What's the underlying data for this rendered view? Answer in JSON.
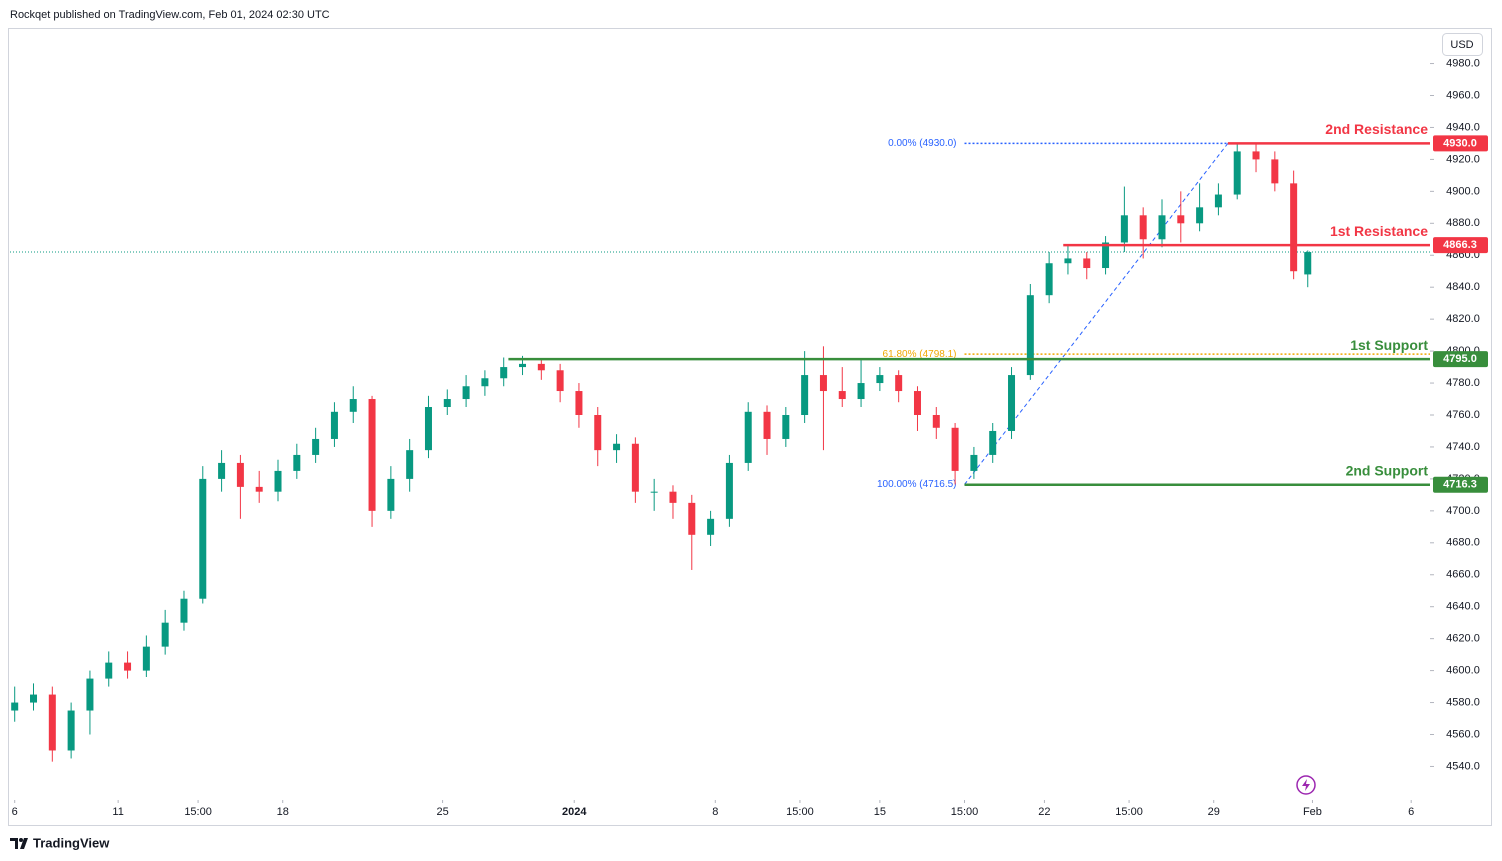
{
  "header": {
    "byline": "Rockqet published on TradingView.com, Feb 01, 2024 02:30 UTC",
    "currency": "USD",
    "brand": "TradingView"
  },
  "chart_data": {
    "type": "candlestick",
    "xlim": [
      -1,
      301
    ],
    "ylim": [
      4519,
      5001
    ],
    "xticks": [
      {
        "value": 0,
        "label": "6"
      },
      {
        "value": 22,
        "label": "11"
      },
      {
        "value": 39,
        "label": "15:00"
      },
      {
        "value": 57,
        "label": "18"
      },
      {
        "value": 91,
        "label": "25"
      },
      {
        "value": 119,
        "label": "2024"
      },
      {
        "value": 149,
        "label": "8"
      },
      {
        "value": 167,
        "label": "15:00"
      },
      {
        "value": 184,
        "label": "15"
      },
      {
        "value": 202,
        "label": "15:00"
      },
      {
        "value": 219,
        "label": "22"
      },
      {
        "value": 237,
        "label": "15:00"
      },
      {
        "value": 255,
        "label": "29"
      },
      {
        "value": 276,
        "label": "Feb"
      },
      {
        "value": 297,
        "label": "6"
      }
    ],
    "yticks": [
      {
        "value": 4540,
        "label": "4540.0"
      },
      {
        "value": 4560,
        "label": "4560.0"
      },
      {
        "value": 4580,
        "label": "4580.0"
      },
      {
        "value": 4600,
        "label": "4600.0"
      },
      {
        "value": 4620,
        "label": "4620.0"
      },
      {
        "value": 4640,
        "label": "4640.0"
      },
      {
        "value": 4660,
        "label": "4660.0"
      },
      {
        "value": 4680,
        "label": "4680.0"
      },
      {
        "value": 4700,
        "label": "4700.0"
      },
      {
        "value": 4720,
        "label": "4720.0"
      },
      {
        "value": 4740,
        "label": "4740.0"
      },
      {
        "value": 4760,
        "label": "4760.0"
      },
      {
        "value": 4780,
        "label": "4780.0"
      },
      {
        "value": 4800,
        "label": "4800.0"
      },
      {
        "value": 4820,
        "label": "4820.0"
      },
      {
        "value": 4840,
        "label": "4840.0"
      },
      {
        "value": 4860,
        "label": "4860.0"
      },
      {
        "value": 4880,
        "label": "4880.0"
      },
      {
        "value": 4900,
        "label": "4900.0"
      },
      {
        "value": 4920,
        "label": "4920.0"
      },
      {
        "value": 4940,
        "label": "4940.0"
      },
      {
        "value": 4960,
        "label": "4960.0"
      },
      {
        "value": 4980,
        "label": "4980.0"
      }
    ],
    "up_color": "#089981",
    "down_color": "#f23645",
    "x": [
      0,
      4,
      8,
      12,
      16,
      20,
      24,
      28,
      32,
      36,
      40,
      44,
      48,
      52,
      56,
      60,
      64,
      68,
      72,
      76,
      80,
      84,
      88,
      92,
      96,
      100,
      104,
      108,
      112,
      116,
      120,
      124,
      128,
      132,
      136,
      140,
      144,
      148,
      152,
      156,
      160,
      164,
      168,
      172,
      176,
      180,
      184,
      188,
      192,
      196,
      200,
      204,
      208,
      212,
      216,
      220,
      224,
      228,
      232,
      236,
      240,
      244,
      248,
      252,
      256,
      260,
      264,
      268,
      272,
      275
    ],
    "open": [
      4575,
      4580,
      4585,
      4550,
      4575,
      4595,
      4605,
      4600,
      4615,
      4630,
      4645,
      4720,
      4730,
      4715,
      4712,
      4725,
      4735,
      4745,
      4762,
      4770,
      4700,
      4720,
      4738,
      4765,
      4770,
      4778,
      4783,
      4790,
      4792,
      4788,
      4775,
      4760,
      4738,
      4742,
      4712,
      4712,
      4705,
      4685,
      4695,
      4730,
      4762,
      4745,
      4760,
      4785,
      4775,
      4770,
      4780,
      4785,
      4775,
      4760,
      4752,
      4725,
      4735,
      4750,
      4785,
      4835,
      4855,
      4858,
      4852,
      4868,
      4885,
      4870,
      4885,
      4880,
      4890,
      4898,
      4925,
      4920,
      4905,
      4848
    ],
    "high": [
      4590,
      4592,
      4590,
      4580,
      4600,
      4612,
      4612,
      4622,
      4638,
      4650,
      4728,
      4738,
      4735,
      4725,
      4732,
      4742,
      4752,
      4768,
      4778,
      4772,
      4728,
      4745,
      4772,
      4776,
      4785,
      4788,
      4796,
      4797,
      4795,
      4792,
      4780,
      4765,
      4748,
      4746,
      4720,
      4716,
      4710,
      4700,
      4735,
      4768,
      4766,
      4765,
      4800,
      4803,
      4790,
      4795,
      4790,
      4788,
      4778,
      4765,
      4755,
      4740,
      4755,
      4790,
      4842,
      4862,
      4866,
      4862,
      4872,
      4903,
      4890,
      4895,
      4900,
      4905,
      4905,
      4930,
      4930,
      4925,
      4913,
      4863
    ],
    "low": [
      4568,
      4575,
      4543,
      4545,
      4560,
      4590,
      4595,
      4596,
      4610,
      4625,
      4642,
      4712,
      4695,
      4705,
      4706,
      4720,
      4730,
      4740,
      4755,
      4690,
      4695,
      4712,
      4733,
      4760,
      4765,
      4772,
      4778,
      4785,
      4782,
      4768,
      4752,
      4728,
      4730,
      4705,
      4700,
      4695,
      4663,
      4678,
      4690,
      4725,
      4735,
      4740,
      4755,
      4738,
      4765,
      4765,
      4775,
      4768,
      4750,
      4745,
      4716.5,
      4720,
      4730,
      4745,
      4782,
      4830,
      4848,
      4845,
      4848,
      4862,
      4858,
      4865,
      4868,
      4875,
      4885,
      4895,
      4912,
      4900,
      4845,
      4840
    ],
    "close": [
      4580,
      4585,
      4550,
      4575,
      4595,
      4605,
      4600,
      4615,
      4630,
      4645,
      4720,
      4730,
      4715,
      4712,
      4725,
      4735,
      4745,
      4762,
      4770,
      4700,
      4720,
      4738,
      4765,
      4770,
      4778,
      4783,
      4790,
      4792,
      4788,
      4775,
      4760,
      4738,
      4742,
      4712,
      4712,
      4705,
      4685,
      4695,
      4730,
      4762,
      4745,
      4760,
      4785,
      4775,
      4770,
      4780,
      4785,
      4775,
      4760,
      4752,
      4725,
      4735,
      4750,
      4785,
      4835,
      4855,
      4858,
      4852,
      4868,
      4885,
      4870,
      4885,
      4880,
      4890,
      4898,
      4925,
      4920,
      4905,
      4850,
      4862
    ],
    "last_price": 4862,
    "levels": [
      {
        "label": "2nd Resistance",
        "value": 4930.0,
        "value_label": "4930.0",
        "color": "#f23645",
        "x_start": 258
      },
      {
        "label": "1st Resistance",
        "value": 4866.3,
        "value_label": "4866.3",
        "color": "#f23645",
        "x_start": 223
      },
      {
        "label": "1st Support",
        "value": 4795.0,
        "value_label": "4795.0",
        "color": "#388e3c",
        "x_start": 105
      },
      {
        "label": "2nd Support",
        "value": 4716.3,
        "value_label": "4716.3",
        "color": "#388e3c",
        "x_start": 202
      }
    ],
    "fib": {
      "x_start": 202,
      "x_end": 258,
      "levels": [
        {
          "label": "0.00% (4930.0)",
          "value": 4930.0,
          "color": "#2962ff"
        },
        {
          "label": "61.80% (4798.1)",
          "value": 4798.1,
          "color": "#f0a800"
        },
        {
          "label": "100.00% (4716.5)",
          "value": 4716.5,
          "color": "#2962ff"
        }
      ]
    }
  }
}
